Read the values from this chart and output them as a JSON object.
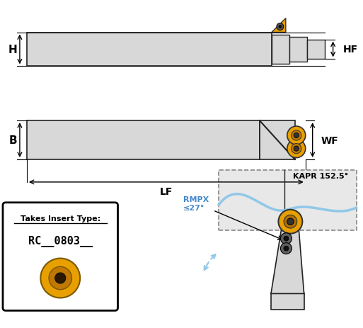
{
  "bg_color": "#ffffff",
  "tool_color": "#d8d8d8",
  "tool_edge": "#222222",
  "insert_gold": "#e8a000",
  "insert_dark": "#333333",
  "blue_line": "#90c8e8",
  "dashed_box": "#888888",
  "label_color": "#000000",
  "rmpx_color": "#4488cc",
  "H_label": "H",
  "HF_label": "HF",
  "B_label": "B",
  "WF_label": "WF",
  "LF_label": "LF",
  "KAPR_label": "KAPR 152.5°",
  "RMPX_label": "RMPX\n≤27°",
  "insert_type_title": "Takes Insert Type:",
  "insert_type_code": "RC__0803__"
}
